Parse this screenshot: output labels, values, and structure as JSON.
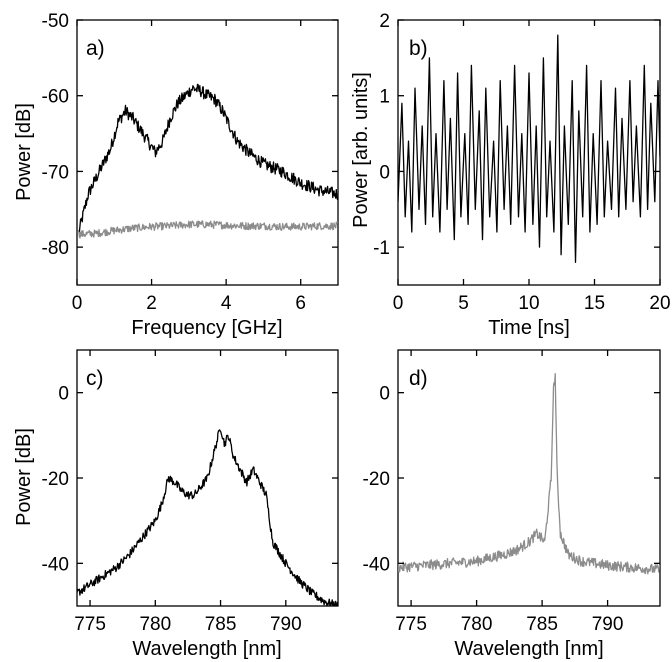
{
  "chart_data": [
    {
      "panel_label": "a)",
      "type": "line",
      "xlabel": "Frequency [GHz]",
      "ylabel": "Power [dB]",
      "xlim": [
        0,
        7
      ],
      "ylim": [
        -85,
        -50
      ],
      "x_ticks": [
        0,
        2,
        4,
        6
      ],
      "x_tick_labels": [
        "0",
        "2",
        "4",
        "6"
      ],
      "y_ticks": [
        -80,
        -70,
        -60,
        -50
      ],
      "y_tick_labels": [
        "-80",
        "-70",
        "-60",
        "-50"
      ],
      "grid": false,
      "legend": "none",
      "series": [
        {
          "color": "#000000",
          "noise": 0.8,
          "x": [
            0.05,
            0.3,
            0.6,
            0.9,
            1.1,
            1.3,
            1.5,
            1.7,
            1.9,
            2.1,
            2.3,
            2.5,
            2.7,
            2.9,
            3.1,
            3.3,
            3.5,
            3.7,
            3.9,
            4.1,
            4.3,
            4.6,
            5.0,
            5.5,
            6.0,
            6.5,
            7.0
          ],
          "y": [
            -78,
            -73,
            -70,
            -67,
            -63.5,
            -62,
            -63,
            -64.5,
            -66,
            -67.5,
            -66,
            -63,
            -61,
            -60,
            -59,
            -59.3,
            -60,
            -60.5,
            -62,
            -64,
            -66,
            -67.5,
            -69,
            -70,
            -71.5,
            -72.5,
            -73
          ]
        },
        {
          "color": "#8c8c8c",
          "noise": 0.5,
          "x": [
            0.05,
            0.5,
            1.0,
            1.5,
            2.0,
            2.5,
            3.0,
            3.5,
            4.0,
            4.5,
            5.0,
            5.5,
            6.0,
            6.5,
            7.0
          ],
          "y": [
            -78.3,
            -78.2,
            -77.8,
            -77.5,
            -77.3,
            -77.2,
            -77,
            -77,
            -77.1,
            -77.2,
            -77.2,
            -77.3,
            -77.3,
            -77.2,
            -77.2
          ]
        }
      ]
    },
    {
      "panel_label": "b)",
      "type": "line",
      "xlabel": "Time [ns]",
      "ylabel": "Power [arb. units]",
      "xlim": [
        0,
        20
      ],
      "ylim": [
        -1.5,
        2
      ],
      "x_ticks": [
        0,
        5,
        10,
        15,
        20
      ],
      "x_tick_labels": [
        "0",
        "5",
        "10",
        "15",
        "20"
      ],
      "y_ticks": [
        -1,
        0,
        1,
        2
      ],
      "y_tick_labels": [
        "-1",
        "0",
        "1",
        "2"
      ],
      "grid": false,
      "legend": "none",
      "series": [
        {
          "color": "#000000",
          "x": [
            0.0,
            0.3,
            0.55,
            0.8,
            1.05,
            1.3,
            1.6,
            1.85,
            2.1,
            2.4,
            2.65,
            2.9,
            3.2,
            3.5,
            3.75,
            4.0,
            4.3,
            4.55,
            4.8,
            5.1,
            5.35,
            5.6,
            5.9,
            6.2,
            6.45,
            6.7,
            7.0,
            7.3,
            7.55,
            7.8,
            8.1,
            8.35,
            8.6,
            8.9,
            9.2,
            9.45,
            9.7,
            10.0,
            10.3,
            10.55,
            10.8,
            11.1,
            11.35,
            11.6,
            11.9,
            12.2,
            12.45,
            12.7,
            13.0,
            13.3,
            13.55,
            13.8,
            14.1,
            14.4,
            14.65,
            14.9,
            15.2,
            15.5,
            15.75,
            16.0,
            16.3,
            16.6,
            16.85,
            17.1,
            17.4,
            17.7,
            17.95,
            18.2,
            18.5,
            18.8,
            19.05,
            19.3,
            19.6,
            19.85,
            20.0
          ],
          "y": [
            -0.4,
            0.9,
            -0.6,
            0.4,
            -0.8,
            1.1,
            -0.5,
            0.6,
            -0.7,
            1.5,
            -0.6,
            0.5,
            -0.8,
            1.2,
            -0.5,
            0.7,
            -0.9,
            1.3,
            -0.6,
            0.5,
            -0.7,
            1.4,
            -0.5,
            0.8,
            -0.9,
            1.1,
            -0.6,
            0.4,
            -0.8,
            1.2,
            -0.5,
            0.6,
            -0.7,
            1.4,
            -0.6,
            0.5,
            -0.8,
            1.3,
            -0.7,
            0.6,
            -1.0,
            1.5,
            -0.6,
            0.4,
            -0.8,
            1.8,
            -1.1,
            0.6,
            -0.7,
            1.2,
            -1.2,
            0.8,
            -0.6,
            1.4,
            -0.8,
            0.5,
            -0.7,
            1.2,
            -0.6,
            0.4,
            -0.5,
            1.1,
            -0.6,
            0.7,
            -0.5,
            1.2,
            -0.4,
            0.6,
            -0.6,
            1.4,
            -0.5,
            0.9,
            -0.4,
            1.2,
            0.2
          ]
        }
      ]
    },
    {
      "panel_label": "c)",
      "type": "line",
      "xlabel": "Wavelength [nm]",
      "ylabel": "Power [dB]",
      "xlim": [
        774,
        794
      ],
      "ylim": [
        -50,
        10
      ],
      "x_ticks": [
        775,
        780,
        785,
        790
      ],
      "x_tick_labels": [
        "775",
        "780",
        "785",
        "790"
      ],
      "y_ticks": [
        -40,
        -20,
        0
      ],
      "y_tick_labels": [
        "-40",
        "-20",
        "0"
      ],
      "grid": false,
      "legend": "none",
      "series": [
        {
          "color": "#000000",
          "noise": 1.0,
          "x": [
            774,
            775,
            776,
            777,
            778,
            779,
            780,
            780.5,
            781,
            781.5,
            782,
            782.5,
            783,
            783.5,
            784,
            784.5,
            785,
            785.3,
            785.6,
            786,
            786.5,
            787,
            787.5,
            788,
            788.5,
            789,
            790,
            791,
            792,
            793,
            794
          ],
          "y": [
            -47,
            -45,
            -43,
            -41,
            -38,
            -34,
            -30,
            -26,
            -20,
            -21,
            -23,
            -24,
            -24,
            -22,
            -20,
            -14,
            -8,
            -12,
            -10,
            -15,
            -18,
            -21,
            -18,
            -21,
            -24,
            -35,
            -40,
            -44,
            -47,
            -49,
            -50
          ]
        }
      ]
    },
    {
      "panel_label": "d)",
      "type": "line",
      "xlabel": "Wavelength [nm]",
      "ylabel": "",
      "xlim": [
        774,
        794
      ],
      "ylim": [
        -50,
        10
      ],
      "x_ticks": [
        775,
        780,
        785,
        790
      ],
      "x_tick_labels": [
        "775",
        "780",
        "785",
        "790"
      ],
      "y_ticks": [
        -40,
        -20,
        0
      ],
      "y_tick_labels": [
        "-40",
        "-20",
        "0"
      ],
      "grid": false,
      "legend": "none",
      "series": [
        {
          "color": "#8c8c8c",
          "noise": 1.2,
          "x": [
            774,
            776,
            778,
            780,
            782,
            783,
            784,
            784.6,
            785.2,
            785.7,
            785.85,
            786.0,
            786.15,
            786.4,
            787,
            788,
            790,
            792,
            794
          ],
          "y": [
            -41,
            -40.5,
            -40,
            -39.5,
            -38,
            -37,
            -35,
            -33,
            -35,
            -20,
            0,
            4,
            -20,
            -33,
            -38,
            -39.5,
            -40.5,
            -41,
            -41.5
          ]
        }
      ]
    }
  ]
}
